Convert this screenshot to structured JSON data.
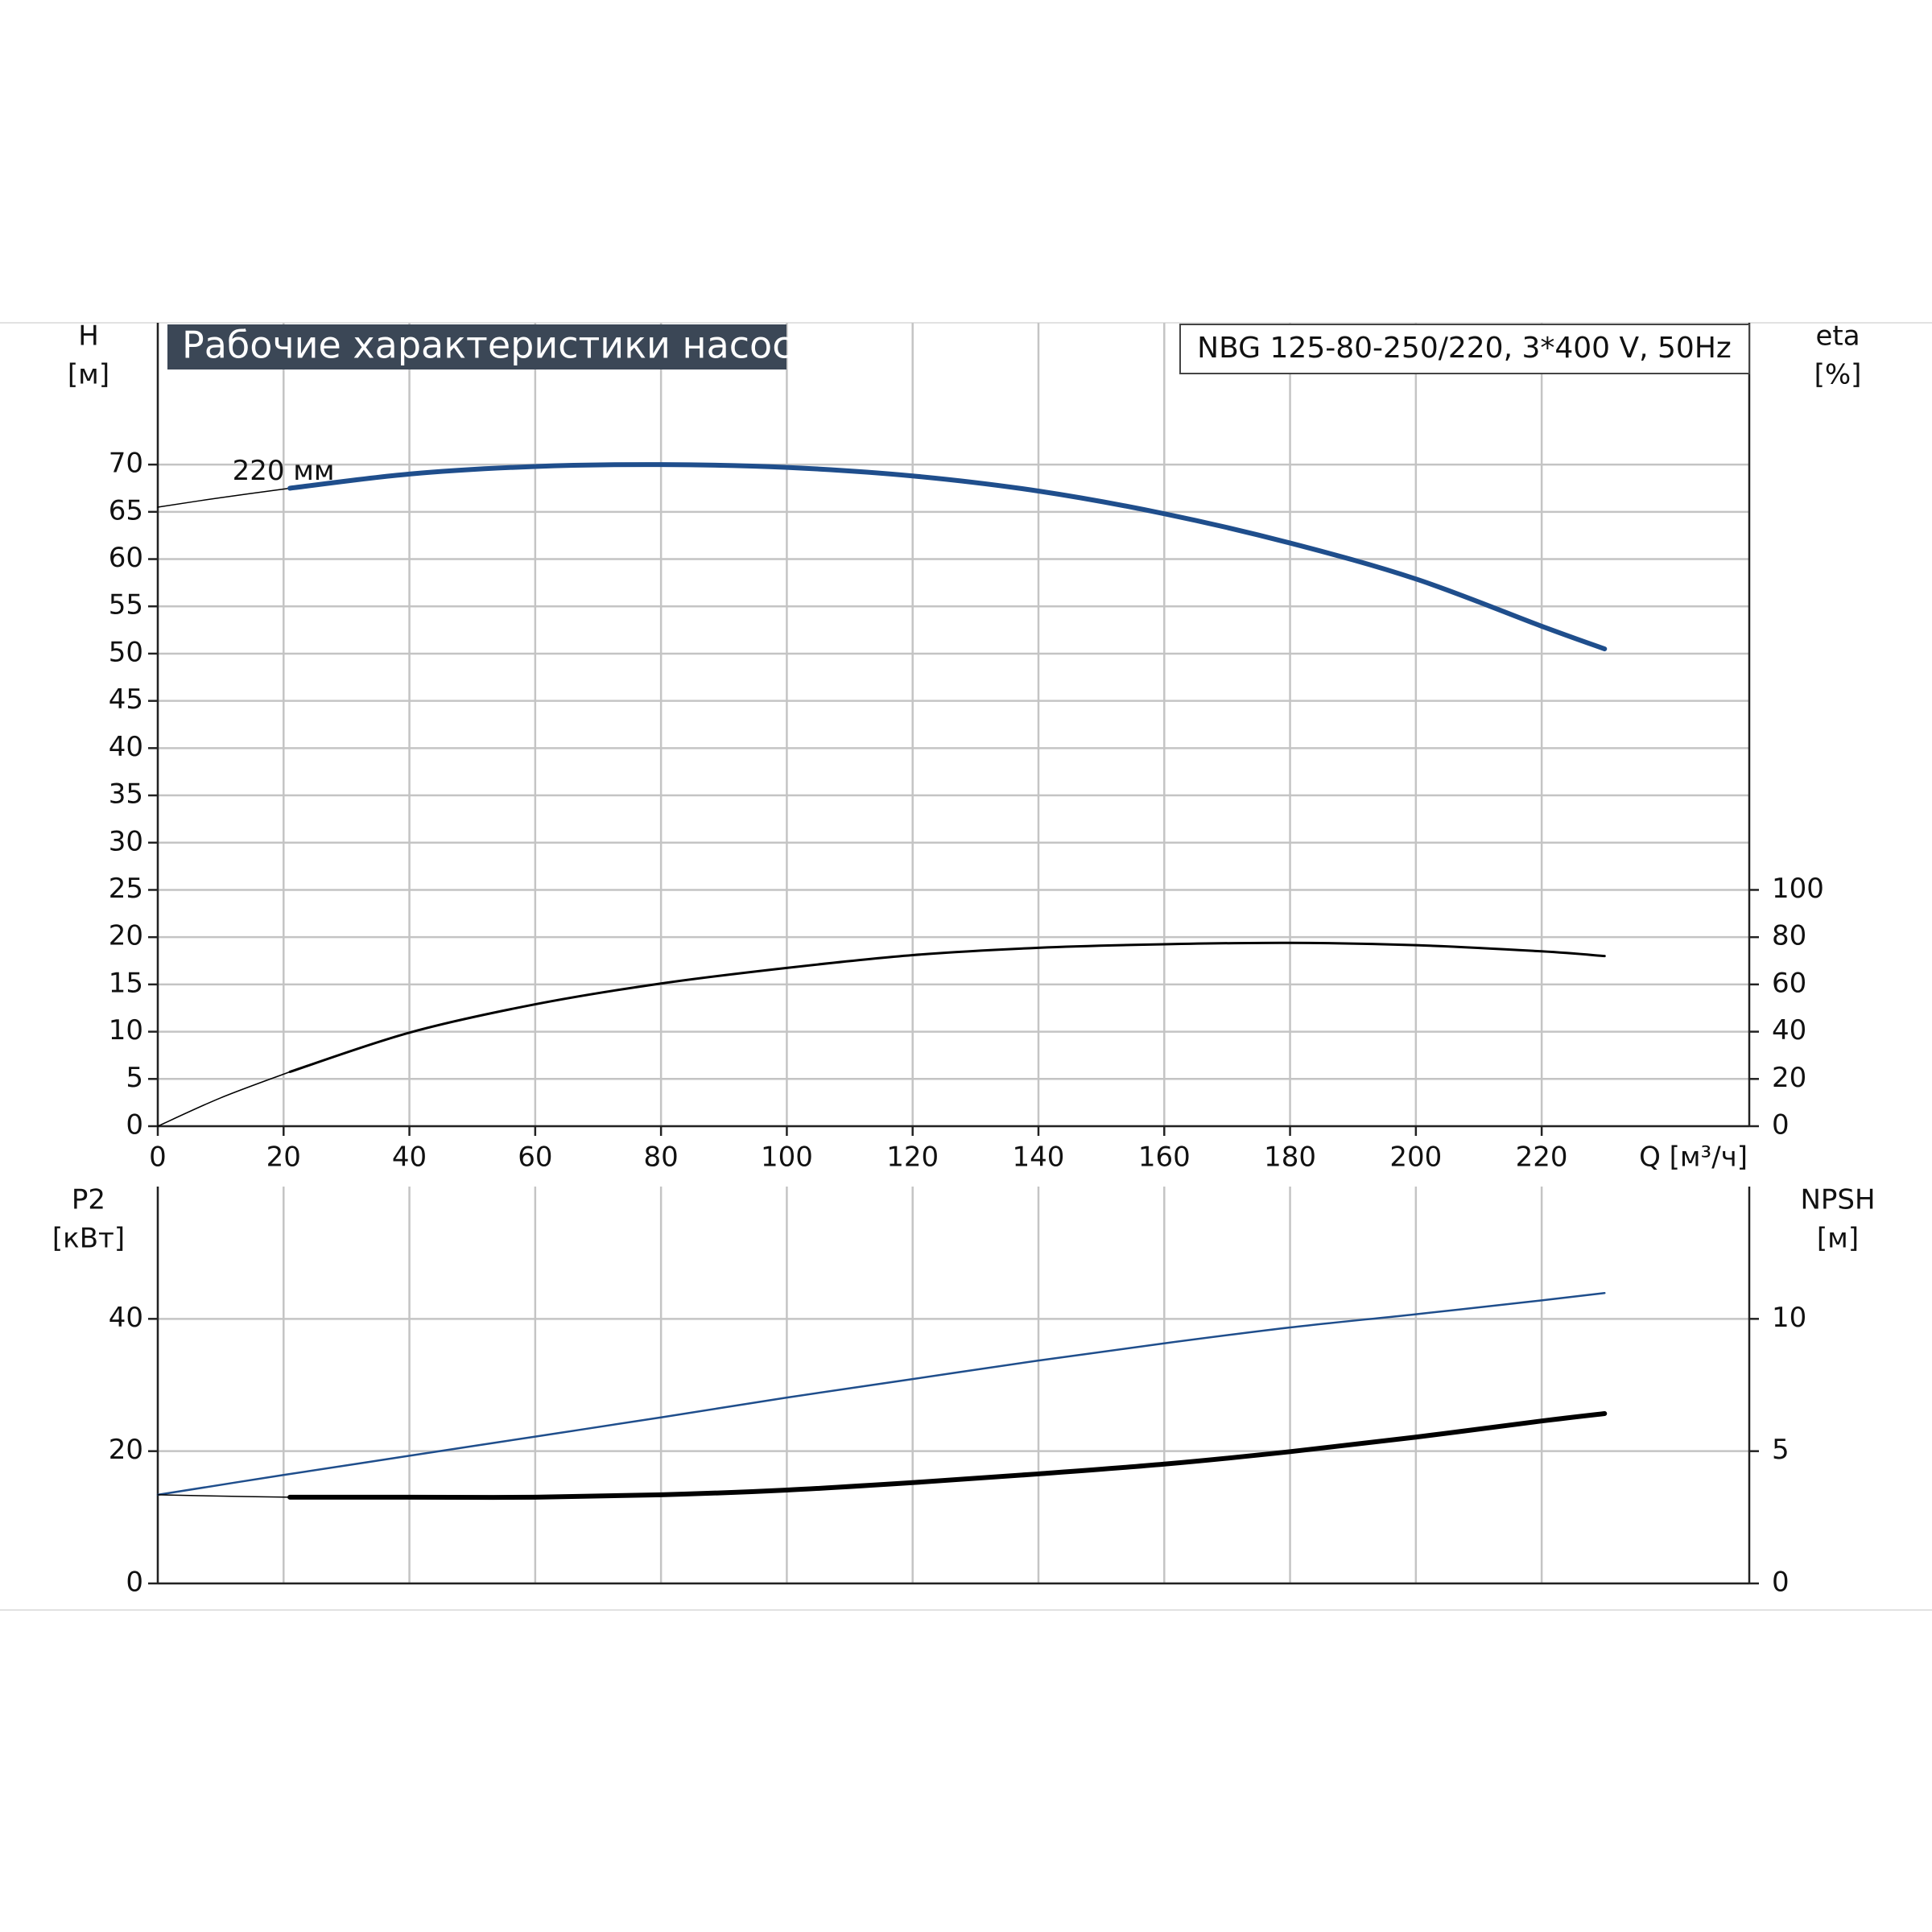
{
  "chart_data": [
    {
      "type": "line",
      "title": "Рабочие характеристики насоса",
      "annotation": "NBG 125-80-250/220, 3*400 V, 50Hz",
      "ylabel": "H",
      "yunit": "[м]",
      "y2label": "eta",
      "y2unit": "[%]",
      "xlabel": "Q [м³/ч]",
      "xlim": [
        0,
        253
      ],
      "xticks": [
        0,
        20,
        40,
        60,
        80,
        100,
        120,
        140,
        160,
        180,
        200,
        220
      ],
      "ylim": [
        0,
        85
      ],
      "yticks": [
        0,
        5,
        10,
        15,
        20,
        25,
        30,
        35,
        40,
        45,
        50,
        55,
        60,
        65,
        70
      ],
      "y2lim": [
        0,
        340
      ],
      "y2ticks": [
        0,
        20,
        40,
        60,
        80,
        100
      ],
      "grid": true,
      "series": [
        {
          "color": "#000000",
          "width": 1.5,
          "axis": "y",
          "x": [
            0,
            10,
            21
          ],
          "values": [
            65.5,
            66.5,
            67.5
          ]
        },
        {
          "name": "220 мм",
          "color": "#1f4e8c",
          "width": 6,
          "axis": "y",
          "x": [
            21,
            40,
            60,
            80,
            100,
            120,
            140,
            160,
            180,
            200,
            220,
            230
          ],
          "values": [
            67.5,
            69,
            69.8,
            70,
            69.7,
            68.8,
            67.2,
            64.8,
            61.7,
            57.9,
            52.9,
            50.5
          ]
        },
        {
          "color": "#000000",
          "width": 1.5,
          "axis": "y2",
          "x": [
            0,
            10,
            21
          ],
          "values": [
            0,
            12,
            23
          ]
        },
        {
          "color": "#000000",
          "width": 3,
          "axis": "y2",
          "x": [
            21,
            40,
            60,
            80,
            100,
            120,
            140,
            160,
            180,
            200,
            220,
            230
          ],
          "values": [
            23,
            39.6,
            51.6,
            60.4,
            67,
            72.4,
            75.5,
            77,
            77.6,
            76.6,
            74,
            72
          ]
        }
      ]
    },
    {
      "type": "line",
      "ylabel": "P2",
      "yunit": "[кВт]",
      "y2label": "NPSH",
      "y2unit": "[м]",
      "xlim": [
        0,
        253
      ],
      "ylim": [
        0,
        60
      ],
      "yticks": [
        0,
        20,
        40
      ],
      "y2lim": [
        0,
        15
      ],
      "y2ticks": [
        0,
        5,
        10
      ],
      "grid": true,
      "series": [
        {
          "color": "#1f4e8c",
          "width": 2.5,
          "axis": "y",
          "x": [
            0,
            20,
            40,
            60,
            80,
            100,
            120,
            140,
            160,
            180,
            200,
            220,
            230
          ],
          "values": [
            13.4,
            16.4,
            19.3,
            22.2,
            25.1,
            28.1,
            30.9,
            33.7,
            36.3,
            38.7,
            40.7,
            42.8,
            43.9
          ]
        },
        {
          "color": "#000000",
          "width": 1.5,
          "axis": "y2",
          "x": [
            0,
            10,
            21
          ],
          "values": [
            3.35,
            3.3,
            3.26
          ]
        },
        {
          "color": "#000000",
          "width": 6,
          "axis": "y2",
          "x": [
            21,
            40,
            60,
            80,
            100,
            120,
            140,
            160,
            180,
            200,
            220,
            230
          ],
          "values": [
            3.26,
            3.26,
            3.26,
            3.35,
            3.53,
            3.81,
            4.14,
            4.51,
            4.98,
            5.53,
            6.14,
            6.42
          ]
        }
      ]
    }
  ]
}
